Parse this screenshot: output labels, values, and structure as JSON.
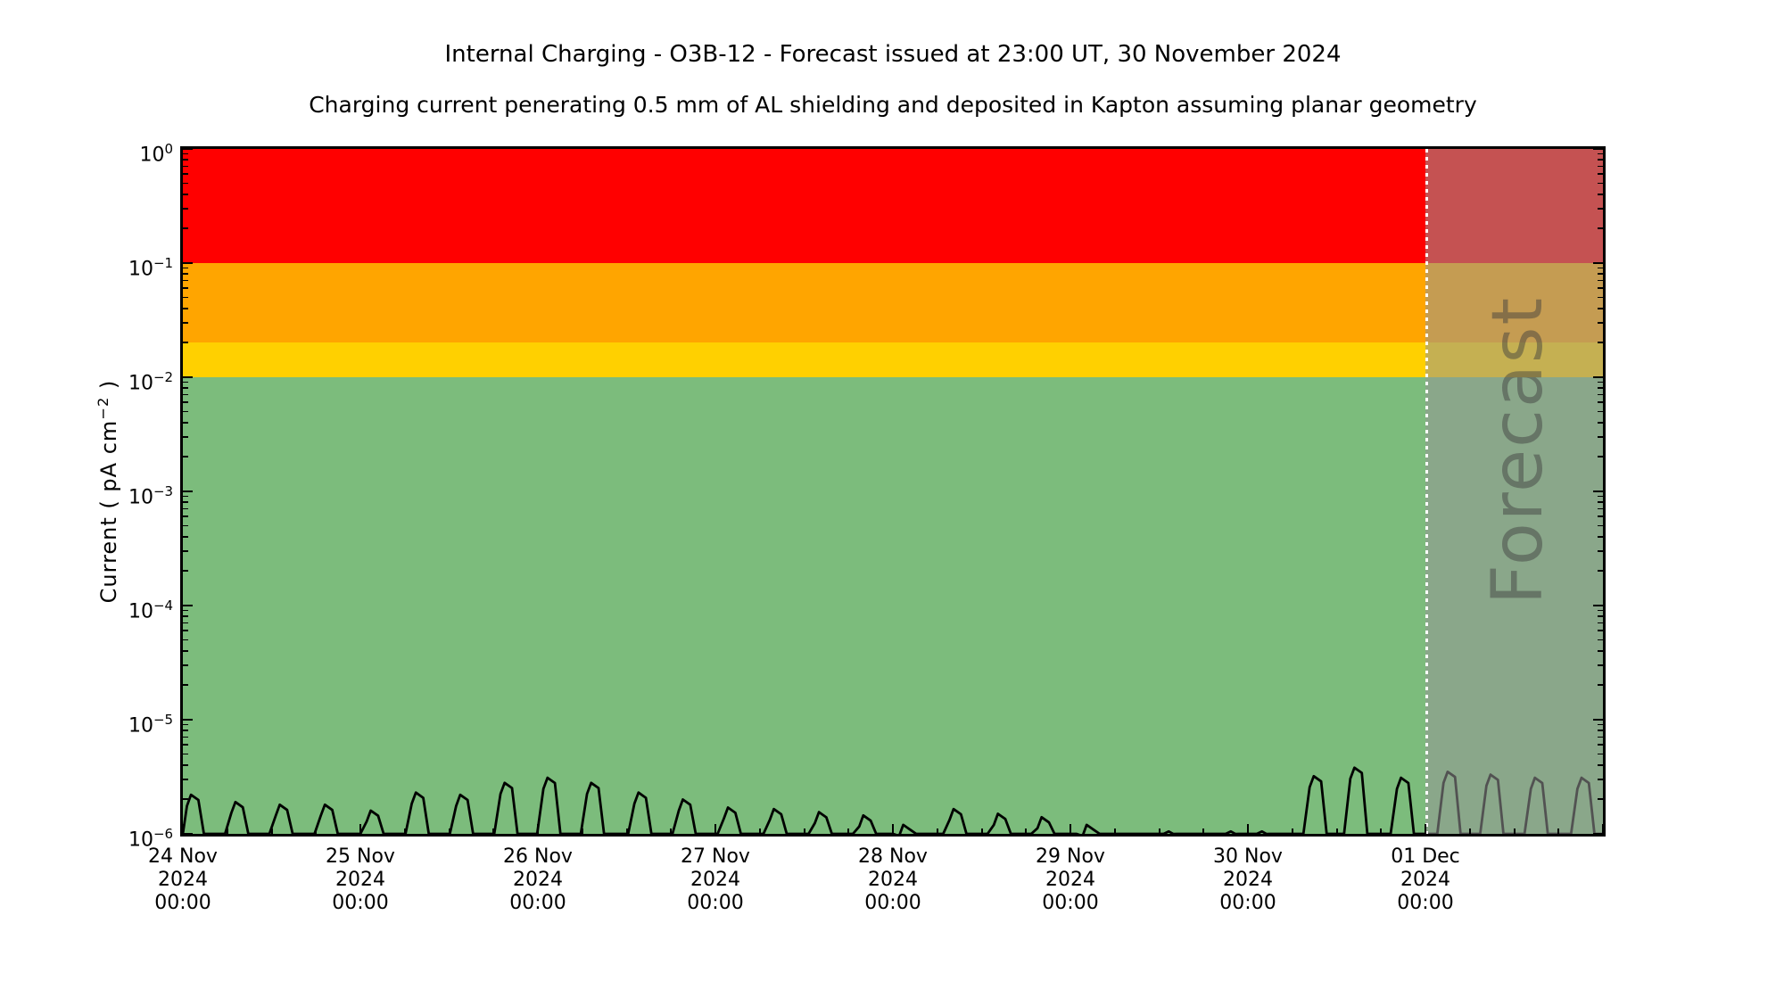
{
  "chart_data": {
    "type": "area",
    "title": "Internal Charging - O3B-12 - Forecast issued at 23:00 UT, 30 November 2024",
    "subtitle": "Charging current penerating 0.5 mm of AL shielding and deposited in Kapton assuming planar geometry",
    "ylabel": {
      "prefix": "Current ( pA cm",
      "sup": "−2",
      "suffix": " )"
    },
    "y_scale": "log",
    "ylim_pA": [
      1e-06,
      1
    ],
    "y_tick_exponents": [
      "0",
      "−1",
      "−2",
      "−3",
      "−4",
      "−5",
      "−6"
    ],
    "xlim_hours": [
      0,
      192
    ],
    "x_tick_hours": [
      0,
      24,
      48,
      72,
      96,
      120,
      144,
      168
    ],
    "x_minor_tick_interval_hours": 6,
    "x_ticks": [
      {
        "date": "24 Nov",
        "year": "2024",
        "time": "00:00"
      },
      {
        "date": "25 Nov",
        "year": "2024",
        "time": "00:00"
      },
      {
        "date": "26 Nov",
        "year": "2024",
        "time": "00:00"
      },
      {
        "date": "27 Nov",
        "year": "2024",
        "time": "00:00"
      },
      {
        "date": "28 Nov",
        "year": "2024",
        "time": "00:00"
      },
      {
        "date": "29 Nov",
        "year": "2024",
        "time": "00:00"
      },
      {
        "date": "30 Nov",
        "year": "2024",
        "time": "00:00"
      },
      {
        "date": "01 Dec",
        "year": "2024",
        "time": "00:00"
      }
    ],
    "bands": [
      {
        "name": "red-zone",
        "range_pA": [
          0.1,
          1.0
        ],
        "color": "#ff0000"
      },
      {
        "name": "orange-zone",
        "range_pA": [
          0.02,
          0.1
        ],
        "color": "#ffa500"
      },
      {
        "name": "yellow-zone",
        "range_pA": [
          0.01,
          0.02
        ],
        "color": "#ffd000"
      },
      {
        "name": "green-zone",
        "range_pA": [
          1e-06,
          0.01
        ],
        "color": "#7cbc7c"
      }
    ],
    "forecast": {
      "label": "Forecast",
      "start_hours": 168,
      "overlay_color": "rgba(150,150,150,0.55)",
      "divider_style": "white dotted vertical line"
    },
    "series": {
      "name": "charging-current",
      "line_color": "#000000",
      "baseline_pA": 1e-06,
      "peaks_t_hours_vs_pA": [
        [
          1.6,
          2.2e-06
        ],
        [
          7.6,
          1.9e-06
        ],
        [
          13.6,
          1.8e-06
        ],
        [
          19.7,
          1.8e-06
        ],
        [
          25.9,
          1.6e-06
        ],
        [
          32.0,
          2.3e-06
        ],
        [
          38.0,
          2.2e-06
        ],
        [
          44.0,
          2.8e-06
        ],
        [
          49.8,
          3.1e-06
        ],
        [
          55.7,
          2.8e-06
        ],
        [
          62.1,
          2.3e-06
        ],
        [
          68.1,
          2e-06
        ],
        [
          74.2,
          1.7e-06
        ],
        [
          80.4,
          1.65e-06
        ],
        [
          86.5,
          1.55e-06
        ],
        [
          92.5,
          1.45e-06
        ],
        [
          97.9,
          1.2e-06
        ],
        [
          104.7,
          1.65e-06
        ],
        [
          110.7,
          1.5e-06
        ],
        [
          116.6,
          1.4e-06
        ],
        [
          122.7,
          1.2e-06
        ],
        [
          133.6,
          1.05e-06
        ],
        [
          142.0,
          1.05e-06
        ],
        [
          146.2,
          1.05e-06
        ],
        [
          153.4,
          3.2e-06
        ],
        [
          158.9,
          3.8e-06
        ],
        [
          165.2,
          3.1e-06
        ],
        [
          171.5,
          3.5e-06
        ],
        [
          177.3,
          3.3e-06
        ],
        [
          183.3,
          3.1e-06
        ],
        [
          189.6,
          3.1e-06
        ]
      ]
    }
  }
}
